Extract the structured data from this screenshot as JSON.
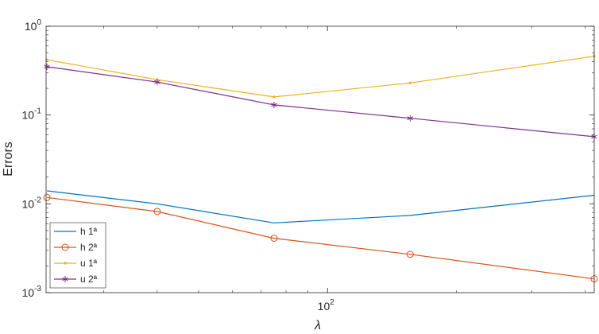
{
  "chart_data": {
    "type": "line",
    "title": "",
    "xlabel": "λ",
    "ylabel": "Errors",
    "xscale": "log",
    "yscale": "log",
    "xlim": [
      22,
      420
    ],
    "ylim": [
      0.001,
      1
    ],
    "grid": false,
    "legend_position": "bottom-left",
    "x": [
      22.1,
      40,
      75,
      156,
      420
    ],
    "x_ticks": [
      {
        "base": "10",
        "exp": "2",
        "value": 100
      }
    ],
    "y_ticks": [
      {
        "base": "10",
        "exp": "-3",
        "value": 0.001
      },
      {
        "base": "10",
        "exp": "-2",
        "value": 0.01
      },
      {
        "base": "10",
        "exp": "-1",
        "value": 0.1
      },
      {
        "base": "10",
        "exp": "0",
        "value": 1
      }
    ],
    "series": [
      {
        "name": "h 1ª",
        "color": "#0072BD",
        "marker": "none",
        "values": [
          0.014,
          0.01,
          0.0061,
          0.0074,
          0.0125
        ]
      },
      {
        "name": "h 2ª",
        "color": "#D95319",
        "marker": "circle",
        "values": [
          0.0118,
          0.0082,
          0.0041,
          0.0027,
          0.00143
        ]
      },
      {
        "name": "u 1ª",
        "color": "#EDB120",
        "marker": "dot",
        "values": [
          0.42,
          0.25,
          0.16,
          0.23,
          0.46
        ]
      },
      {
        "name": "u 2ª",
        "color": "#7E2F8E",
        "marker": "asterisk",
        "values": [
          0.35,
          0.235,
          0.13,
          0.092,
          0.057
        ]
      }
    ]
  }
}
